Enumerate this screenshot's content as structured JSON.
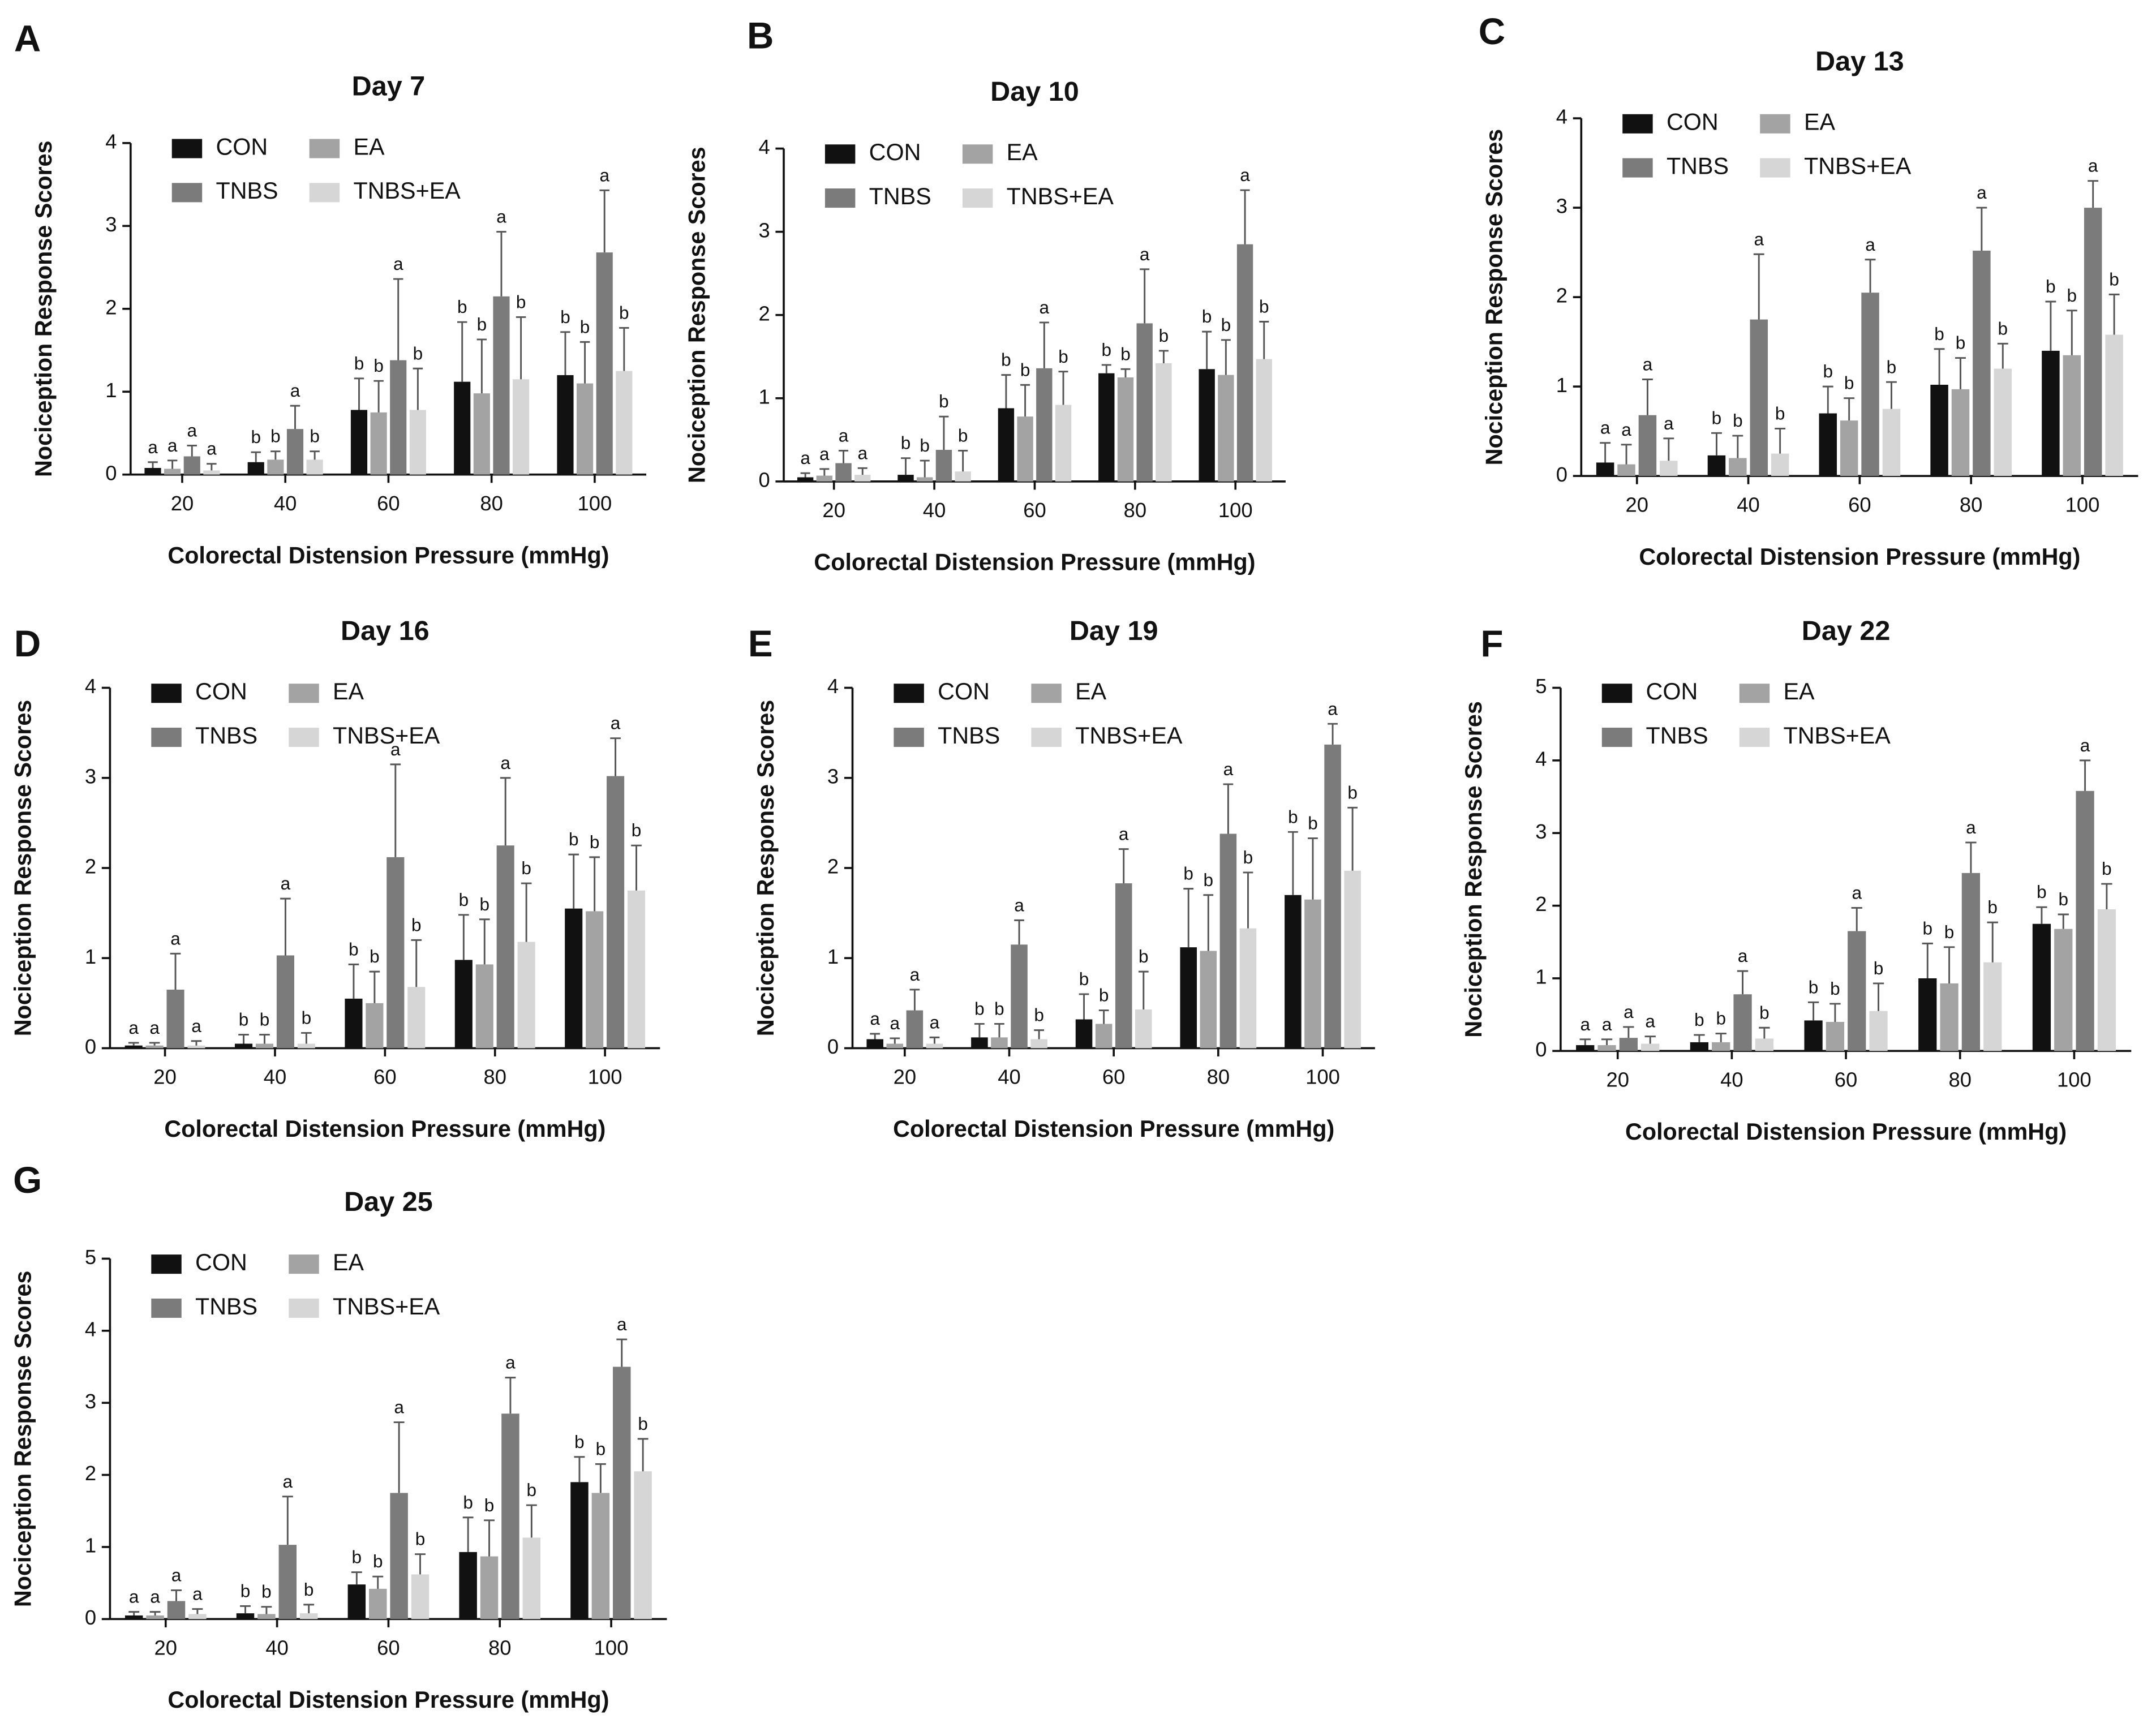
{
  "chart_data": [
    {
      "type": "bar",
      "panel": "A",
      "title": "Day 7",
      "x_label": "Colorectal Distension Pressure (mmHg)",
      "y_label": "Nociception Response Scores",
      "categories": [
        "20",
        "40",
        "60",
        "80",
        "100"
      ],
      "ylim": [
        0,
        4
      ],
      "yticks": [
        0,
        1,
        2,
        3,
        4
      ],
      "series": [
        {
          "name": "CON",
          "color": "#111111",
          "values": [
            0.08,
            0.15,
            0.78,
            1.12,
            1.2
          ],
          "errors": [
            0.07,
            0.12,
            0.38,
            0.72,
            0.52
          ],
          "letters": [
            "a",
            "b",
            "b",
            "b",
            "b"
          ]
        },
        {
          "name": "EA",
          "color": "#a3a3a3",
          "values": [
            0.07,
            0.18,
            0.75,
            0.98,
            1.1
          ],
          "errors": [
            0.1,
            0.1,
            0.38,
            0.65,
            0.5
          ],
          "letters": [
            "a",
            "b",
            "b",
            "b",
            "b"
          ]
        },
        {
          "name": "TNBS",
          "color": "#7b7b7b",
          "values": [
            0.22,
            0.55,
            1.38,
            2.15,
            2.68
          ],
          "errors": [
            0.13,
            0.28,
            0.98,
            0.78,
            0.75
          ],
          "letters": [
            "a",
            "a",
            "a",
            "a",
            "a"
          ]
        },
        {
          "name": "TNBS+EA",
          "color": "#d6d6d6",
          "values": [
            0.05,
            0.18,
            0.78,
            1.15,
            1.25
          ],
          "errors": [
            0.08,
            0.1,
            0.5,
            0.75,
            0.52
          ],
          "letters": [
            "a",
            "b",
            "b",
            "b",
            "b"
          ]
        }
      ]
    },
    {
      "type": "bar",
      "panel": "B",
      "title": "Day 10",
      "x_label": "Colorectal Distension Pressure (mmHg)",
      "y_label": "Nociception Response Scores",
      "categories": [
        "20",
        "40",
        "60",
        "80",
        "100"
      ],
      "ylim": [
        0,
        4
      ],
      "yticks": [
        0,
        1,
        2,
        3,
        4
      ],
      "series": [
        {
          "name": "CON",
          "color": "#111111",
          "values": [
            0.05,
            0.08,
            0.88,
            1.3,
            1.35
          ],
          "errors": [
            0.05,
            0.2,
            0.4,
            0.1,
            0.45
          ],
          "letters": [
            "a",
            "b",
            "b",
            "b",
            "b"
          ]
        },
        {
          "name": "EA",
          "color": "#a3a3a3",
          "values": [
            0.07,
            0.05,
            0.78,
            1.25,
            1.28
          ],
          "errors": [
            0.08,
            0.2,
            0.38,
            0.1,
            0.42
          ],
          "letters": [
            "a",
            "b",
            "b",
            "b",
            "b"
          ]
        },
        {
          "name": "TNBS",
          "color": "#7b7b7b",
          "values": [
            0.22,
            0.38,
            1.36,
            1.9,
            2.85
          ],
          "errors": [
            0.15,
            0.4,
            0.55,
            0.65,
            0.65
          ],
          "letters": [
            "a",
            "b",
            "a",
            "a",
            "a"
          ]
        },
        {
          "name": "TNBS+EA",
          "color": "#d6d6d6",
          "values": [
            0.08,
            0.12,
            0.92,
            1.42,
            1.47
          ],
          "errors": [
            0.08,
            0.25,
            0.4,
            0.15,
            0.45
          ],
          "letters": [
            "a",
            "b",
            "b",
            "b",
            "b"
          ]
        }
      ]
    },
    {
      "type": "bar",
      "panel": "C",
      "title": "Day 13",
      "x_label": "Colorectal Distension Pressure (mmHg)",
      "y_label": "Nociception Response Scores",
      "categories": [
        "20",
        "40",
        "60",
        "80",
        "100"
      ],
      "ylim": [
        0,
        4
      ],
      "yticks": [
        0,
        1,
        2,
        3,
        4
      ],
      "series": [
        {
          "name": "CON",
          "color": "#111111",
          "values": [
            0.15,
            0.23,
            0.7,
            1.02,
            1.4
          ],
          "errors": [
            0.22,
            0.25,
            0.3,
            0.4,
            0.55
          ],
          "letters": [
            "a",
            "b",
            "b",
            "b",
            "b"
          ]
        },
        {
          "name": "EA",
          "color": "#a3a3a3",
          "values": [
            0.13,
            0.2,
            0.62,
            0.97,
            1.35
          ],
          "errors": [
            0.22,
            0.25,
            0.25,
            0.35,
            0.5
          ],
          "letters": [
            "a",
            "b",
            "b",
            "b",
            "b"
          ]
        },
        {
          "name": "TNBS",
          "color": "#7b7b7b",
          "values": [
            0.68,
            1.75,
            2.05,
            2.52,
            3.0
          ],
          "errors": [
            0.4,
            0.73,
            0.37,
            0.48,
            0.3
          ],
          "letters": [
            "a",
            "a",
            "a",
            "a",
            "a"
          ]
        },
        {
          "name": "TNBS+EA",
          "color": "#d6d6d6",
          "values": [
            0.17,
            0.25,
            0.75,
            1.2,
            1.58
          ],
          "errors": [
            0.25,
            0.28,
            0.3,
            0.28,
            0.45
          ],
          "letters": [
            "a",
            "b",
            "b",
            "b",
            "b"
          ]
        }
      ]
    },
    {
      "type": "bar",
      "panel": "D",
      "title": "Day 16",
      "x_label": "Colorectal Distension Pressure (mmHg)",
      "y_label": "Nociception Response Scores",
      "categories": [
        "20",
        "40",
        "60",
        "80",
        "100"
      ],
      "ylim": [
        0,
        4
      ],
      "yticks": [
        0,
        1,
        2,
        3,
        4
      ],
      "series": [
        {
          "name": "CON",
          "color": "#111111",
          "values": [
            0.03,
            0.05,
            0.55,
            0.98,
            1.55
          ],
          "errors": [
            0.03,
            0.1,
            0.38,
            0.5,
            0.6
          ],
          "letters": [
            "a",
            "b",
            "b",
            "b",
            "b"
          ]
        },
        {
          "name": "EA",
          "color": "#a3a3a3",
          "values": [
            0.03,
            0.05,
            0.5,
            0.93,
            1.52
          ],
          "errors": [
            0.03,
            0.1,
            0.35,
            0.5,
            0.6
          ],
          "letters": [
            "a",
            "b",
            "b",
            "b",
            "b"
          ]
        },
        {
          "name": "TNBS",
          "color": "#7b7b7b",
          "values": [
            0.65,
            1.03,
            2.12,
            2.25,
            3.02
          ],
          "errors": [
            0.4,
            0.63,
            1.03,
            0.75,
            0.42
          ],
          "letters": [
            "a",
            "a",
            "a",
            "a",
            "a"
          ]
        },
        {
          "name": "TNBS+EA",
          "color": "#d6d6d6",
          "values": [
            0.03,
            0.05,
            0.68,
            1.18,
            1.75
          ],
          "errors": [
            0.05,
            0.12,
            0.52,
            0.65,
            0.5
          ],
          "letters": [
            "a",
            "b",
            "b",
            "b",
            "b"
          ]
        }
      ]
    },
    {
      "type": "bar",
      "panel": "E",
      "title": "Day 19",
      "x_label": "Colorectal Distension Pressure (mmHg)",
      "y_label": "Nociception Response Scores",
      "categories": [
        "20",
        "40",
        "60",
        "80",
        "100"
      ],
      "ylim": [
        0,
        4
      ],
      "yticks": [
        0,
        1,
        2,
        3,
        4
      ],
      "series": [
        {
          "name": "CON",
          "color": "#111111",
          "values": [
            0.1,
            0.12,
            0.32,
            1.12,
            1.7
          ],
          "errors": [
            0.06,
            0.15,
            0.28,
            0.65,
            0.7
          ],
          "letters": [
            "a",
            "b",
            "b",
            "b",
            "b"
          ]
        },
        {
          "name": "EA",
          "color": "#a3a3a3",
          "values": [
            0.05,
            0.12,
            0.27,
            1.08,
            1.65
          ],
          "errors": [
            0.06,
            0.15,
            0.15,
            0.62,
            0.68
          ],
          "letters": [
            "a",
            "b",
            "b",
            "b",
            "b"
          ]
        },
        {
          "name": "TNBS",
          "color": "#7b7b7b",
          "values": [
            0.42,
            1.15,
            1.83,
            2.38,
            3.37
          ],
          "errors": [
            0.23,
            0.27,
            0.38,
            0.55,
            0.23
          ],
          "letters": [
            "a",
            "a",
            "a",
            "a",
            "a"
          ]
        },
        {
          "name": "TNBS+EA",
          "color": "#d6d6d6",
          "values": [
            0.05,
            0.1,
            0.43,
            1.33,
            1.97
          ],
          "errors": [
            0.07,
            0.1,
            0.42,
            0.62,
            0.7
          ],
          "letters": [
            "a",
            "b",
            "b",
            "b",
            "b"
          ]
        }
      ]
    },
    {
      "type": "bar",
      "panel": "F",
      "title": "Day 22",
      "x_label": "Colorectal Distension Pressure (mmHg)",
      "y_label": "Nociception Response Scores",
      "categories": [
        "20",
        "40",
        "60",
        "80",
        "100"
      ],
      "ylim": [
        0,
        5
      ],
      "yticks": [
        0,
        1,
        2,
        3,
        4,
        5
      ],
      "series": [
        {
          "name": "CON",
          "color": "#111111",
          "values": [
            0.08,
            0.12,
            0.42,
            1.0,
            1.75
          ],
          "errors": [
            0.08,
            0.1,
            0.25,
            0.48,
            0.23
          ],
          "letters": [
            "a",
            "b",
            "b",
            "b",
            "b"
          ]
        },
        {
          "name": "EA",
          "color": "#a3a3a3",
          "values": [
            0.08,
            0.12,
            0.4,
            0.93,
            1.68
          ],
          "errors": [
            0.08,
            0.12,
            0.25,
            0.5,
            0.2
          ],
          "letters": [
            "a",
            "b",
            "b",
            "b",
            "b"
          ]
        },
        {
          "name": "TNBS",
          "color": "#7b7b7b",
          "values": [
            0.18,
            0.78,
            1.65,
            2.45,
            3.58
          ],
          "errors": [
            0.15,
            0.32,
            0.32,
            0.42,
            0.42
          ],
          "letters": [
            "a",
            "a",
            "a",
            "a",
            "a"
          ]
        },
        {
          "name": "TNBS+EA",
          "color": "#d6d6d6",
          "values": [
            0.1,
            0.17,
            0.55,
            1.22,
            1.95
          ],
          "errors": [
            0.1,
            0.15,
            0.38,
            0.55,
            0.35
          ],
          "letters": [
            "a",
            "b",
            "b",
            "b",
            "b"
          ]
        }
      ]
    },
    {
      "type": "bar",
      "panel": "G",
      "title": "Day 25",
      "x_label": "Colorectal Distension Pressure (mmHg)",
      "y_label": "Nociception Response Scores",
      "categories": [
        "20",
        "40",
        "60",
        "80",
        "100"
      ],
      "ylim": [
        0,
        5
      ],
      "yticks": [
        0,
        1,
        2,
        3,
        4,
        5
      ],
      "series": [
        {
          "name": "CON",
          "color": "#111111",
          "values": [
            0.05,
            0.08,
            0.48,
            0.93,
            1.9
          ],
          "errors": [
            0.05,
            0.1,
            0.17,
            0.48,
            0.35
          ],
          "letters": [
            "a",
            "b",
            "b",
            "b",
            "b"
          ]
        },
        {
          "name": "EA",
          "color": "#a3a3a3",
          "values": [
            0.05,
            0.07,
            0.42,
            0.87,
            1.75
          ],
          "errors": [
            0.05,
            0.1,
            0.17,
            0.5,
            0.4
          ],
          "letters": [
            "a",
            "b",
            "b",
            "b",
            "b"
          ]
        },
        {
          "name": "TNBS",
          "color": "#7b7b7b",
          "values": [
            0.25,
            1.03,
            1.75,
            2.85,
            3.5
          ],
          "errors": [
            0.15,
            0.67,
            0.98,
            0.5,
            0.38
          ],
          "letters": [
            "a",
            "a",
            "a",
            "a",
            "a"
          ]
        },
        {
          "name": "TNBS+EA",
          "color": "#d6d6d6",
          "values": [
            0.07,
            0.08,
            0.62,
            1.13,
            2.05
          ],
          "errors": [
            0.07,
            0.12,
            0.28,
            0.45,
            0.45
          ],
          "letters": [
            "a",
            "b",
            "b",
            "b",
            "b"
          ]
        }
      ]
    }
  ]
}
